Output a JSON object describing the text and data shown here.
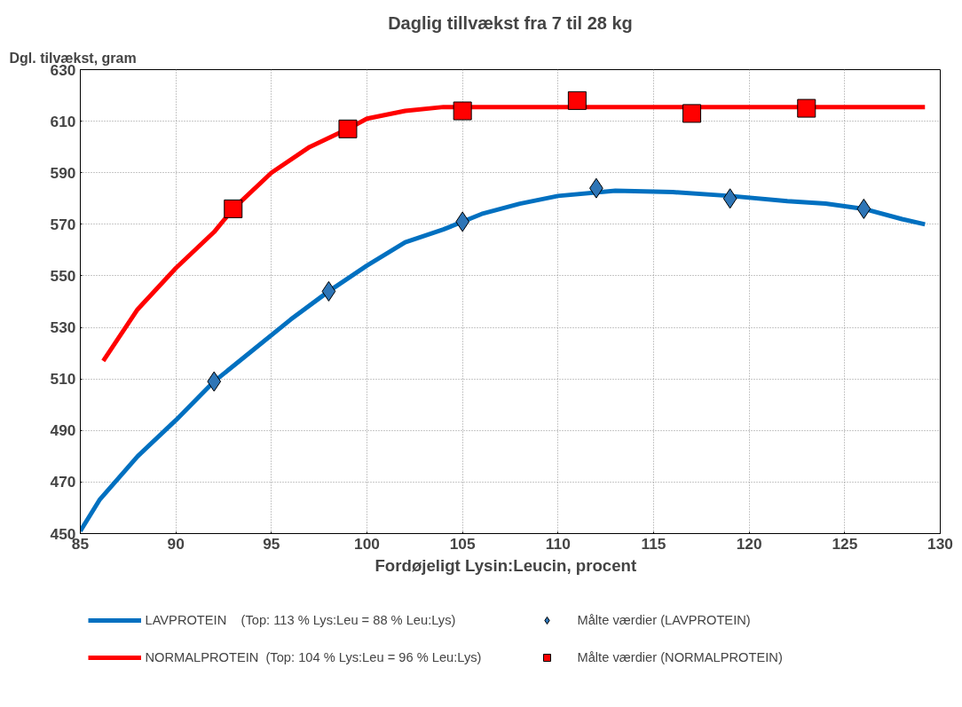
{
  "chart_data": {
    "type": "line",
    "title": "Daglig tillvækst fra 7 til 28 kg",
    "xlabel": "Fordøjeligt  Lysin:Leucin,  procent",
    "ylabel": "Dgl. tilvækst, gram",
    "xlim": [
      85,
      130
    ],
    "xticks": [
      85,
      90,
      95,
      100,
      105,
      110,
      115,
      120,
      125,
      130
    ],
    "ylim": [
      450,
      630
    ],
    "yticks": [
      450,
      470,
      490,
      510,
      530,
      550,
      570,
      590,
      610,
      630
    ],
    "grid": true,
    "legend": "bottom",
    "line_style": "solid",
    "series": [
      {
        "name": "LAVPROTEIN    (Top: 113 % Lys:Leu = 88 % Leu:Lys)",
        "color": "#0070c0",
        "x": [
          85,
          86,
          88,
          90,
          92,
          94,
          96,
          98,
          100,
          102,
          104,
          106,
          108,
          110,
          113,
          116,
          119,
          122,
          124,
          126,
          128,
          129.2
        ],
        "values": [
          451,
          463,
          480,
          494,
          509,
          521,
          533,
          544,
          554,
          563,
          568,
          574,
          578,
          581,
          583,
          582.5,
          581,
          579,
          578,
          576,
          572,
          570
        ]
      },
      {
        "name": "Målte værdier (LAVPROTEIN)",
        "type": "scatter",
        "marker": "diamond",
        "color": "#2e75b6",
        "x": [
          92,
          98,
          105,
          112,
          119,
          126
        ],
        "values": [
          509,
          544,
          571,
          584,
          580,
          576
        ]
      },
      {
        "name": "NORMALPROTEIN  (Top: 104 % Lys:Leu = 96 % Leu:Lys)",
        "color": "#ff0000",
        "x": [
          86.2,
          88,
          90,
          92,
          93,
          95,
          97,
          99,
          100,
          102,
          104,
          110,
          129.2
        ],
        "values": [
          517,
          537,
          553,
          567,
          576,
          590,
          600,
          607,
          611,
          614,
          615.5,
          615.5,
          615.5
        ]
      },
      {
        "name": "Målte værdier (NORMALPROTEIN)",
        "type": "scatter",
        "marker": "square",
        "color": "#ff0000",
        "x": [
          93,
          99,
          105,
          111,
          117,
          123
        ],
        "values": [
          576,
          607,
          614,
          618,
          613,
          615
        ]
      }
    ]
  }
}
